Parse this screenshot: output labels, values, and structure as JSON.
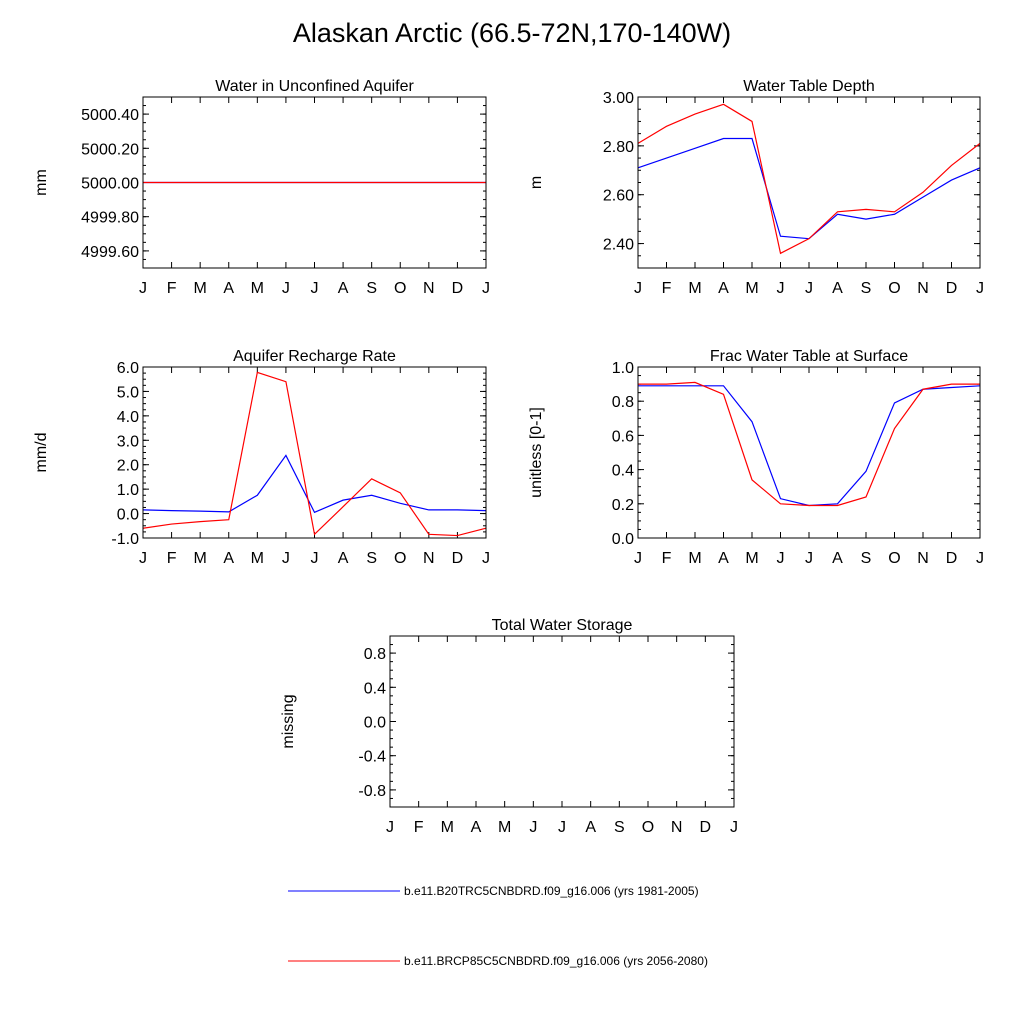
{
  "title": "Alaskan Arctic (66.5-72N,170-140W)",
  "colors": {
    "series1": "#0000ff",
    "series2": "#ff0000",
    "frame": "#000000"
  },
  "legend": [
    {
      "label": "b.e11.B20TRC5CNBDRD.f09_g16.006 (yrs 1981-2005)",
      "color": "#0000ff"
    },
    {
      "label": "b.e11.BRCP85C5CNBDRD.f09_g16.006 (yrs 2056-2080)",
      "color": "#ff0000"
    }
  ],
  "chart_data": [
    {
      "type": "line",
      "title": "Water in Unconfined Aquifer",
      "ylabel": "mm",
      "categories": [
        "J",
        "F",
        "M",
        "A",
        "M",
        "J",
        "J",
        "A",
        "S",
        "O",
        "N",
        "D",
        "J"
      ],
      "ylim": [
        4999.5,
        5000.5
      ],
      "yticks": [
        4999.6,
        4999.8,
        5000.0,
        5000.2,
        5000.4
      ],
      "ytick_labels": [
        "4999.60",
        "4999.80",
        "5000.00",
        "5000.20",
        "5000.40"
      ],
      "series": [
        {
          "name": "b.e11.B20TRC5CNBDRD.f09_g16.006 (yrs 1981-2005)",
          "color": "#0000ff",
          "values": [
            5000,
            5000,
            5000,
            5000,
            5000,
            5000,
            5000,
            5000,
            5000,
            5000,
            5000,
            5000,
            5000
          ]
        },
        {
          "name": "b.e11.BRCP85C5CNBDRD.f09_g16.006 (yrs 2056-2080)",
          "color": "#ff0000",
          "values": [
            5000,
            5000,
            5000,
            5000,
            5000,
            5000,
            5000,
            5000,
            5000,
            5000,
            5000,
            5000,
            5000
          ]
        }
      ]
    },
    {
      "type": "line",
      "title": "Water Table Depth",
      "ylabel": "m",
      "categories": [
        "J",
        "F",
        "M",
        "A",
        "M",
        "J",
        "J",
        "A",
        "S",
        "O",
        "N",
        "D",
        "J"
      ],
      "ylim": [
        2.3,
        3.0
      ],
      "yticks": [
        2.4,
        2.6,
        2.8,
        3.0
      ],
      "ytick_labels": [
        "2.40",
        "2.60",
        "2.80",
        "3.00"
      ],
      "series": [
        {
          "name": "b.e11.B20TRC5CNBDRD.f09_g16.006 (yrs 1981-2005)",
          "color": "#0000ff",
          "values": [
            2.71,
            2.75,
            2.79,
            2.83,
            2.83,
            2.43,
            2.42,
            2.52,
            2.5,
            2.52,
            2.59,
            2.66,
            2.71
          ]
        },
        {
          "name": "b.e11.BRCP85C5CNBDRD.f09_g16.006 (yrs 2056-2080)",
          "color": "#ff0000",
          "values": [
            2.81,
            2.88,
            2.93,
            2.97,
            2.9,
            2.36,
            2.42,
            2.53,
            2.54,
            2.53,
            2.61,
            2.72,
            2.81
          ]
        }
      ]
    },
    {
      "type": "line",
      "title": "Aquifer Recharge Rate",
      "ylabel": "mm/d",
      "categories": [
        "J",
        "F",
        "M",
        "A",
        "M",
        "J",
        "J",
        "A",
        "S",
        "O",
        "N",
        "D",
        "J"
      ],
      "ylim": [
        -1.0,
        6.0
      ],
      "yticks": [
        -1.0,
        0.0,
        1.0,
        2.0,
        3.0,
        4.0,
        5.0,
        6.0
      ],
      "ytick_labels": [
        "-1.0",
        "0.0",
        "1.0",
        "2.0",
        "3.0",
        "4.0",
        "5.0",
        "6.0"
      ],
      "series": [
        {
          "name": "b.e11.B20TRC5CNBDRD.f09_g16.006 (yrs 1981-2005)",
          "color": "#0000ff",
          "values": [
            0.15,
            0.12,
            0.1,
            0.07,
            0.75,
            2.38,
            0.05,
            0.55,
            0.75,
            0.42,
            0.15,
            0.15,
            0.12
          ]
        },
        {
          "name": "b.e11.BRCP85C5CNBDRD.f09_g16.006 (yrs 2056-2080)",
          "color": "#ff0000",
          "values": [
            -0.6,
            -0.43,
            -0.33,
            -0.25,
            5.78,
            5.4,
            -0.85,
            0.28,
            1.42,
            0.85,
            -0.85,
            -0.9,
            -0.6
          ]
        }
      ]
    },
    {
      "type": "line",
      "title": "Frac Water Table at Surface",
      "ylabel": "unitless [0-1]",
      "categories": [
        "J",
        "F",
        "M",
        "A",
        "M",
        "J",
        "J",
        "A",
        "S",
        "O",
        "N",
        "D",
        "J"
      ],
      "ylim": [
        0.0,
        1.0
      ],
      "yticks": [
        0.0,
        0.2,
        0.4,
        0.6,
        0.8,
        1.0
      ],
      "ytick_labels": [
        "0.0",
        "0.2",
        "0.4",
        "0.6",
        "0.8",
        "1.0"
      ],
      "series": [
        {
          "name": "b.e11.B20TRC5CNBDRD.f09_g16.006 (yrs 1981-2005)",
          "color": "#0000ff",
          "values": [
            0.89,
            0.89,
            0.89,
            0.89,
            0.68,
            0.23,
            0.19,
            0.2,
            0.39,
            0.79,
            0.87,
            0.88,
            0.89
          ]
        },
        {
          "name": "b.e11.BRCP85C5CNBDRD.f09_g16.006 (yrs 2056-2080)",
          "color": "#ff0000",
          "values": [
            0.9,
            0.9,
            0.91,
            0.84,
            0.34,
            0.2,
            0.19,
            0.19,
            0.24,
            0.64,
            0.87,
            0.9,
            0.9
          ]
        }
      ]
    },
    {
      "type": "line",
      "title": "Total Water Storage",
      "ylabel": "missing",
      "categories": [
        "J",
        "F",
        "M",
        "A",
        "M",
        "J",
        "J",
        "A",
        "S",
        "O",
        "N",
        "D",
        "J"
      ],
      "ylim": [
        -1.0,
        1.0
      ],
      "yticks": [
        -0.8,
        -0.4,
        0.0,
        0.4,
        0.8
      ],
      "ytick_labels": [
        "-0.8",
        "-0.4",
        "0.0",
        "0.4",
        "0.8"
      ],
      "series": []
    }
  ]
}
